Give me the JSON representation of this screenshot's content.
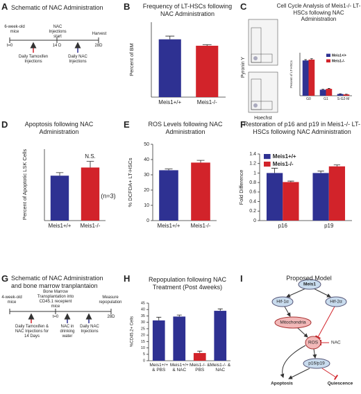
{
  "letters": [
    "A",
    "B",
    "C",
    "D",
    "E",
    "F",
    "G",
    "H",
    "I"
  ],
  "schematic_a": {
    "title": "Schematic of NAC Administration",
    "start": "6-week-old mice",
    "mid": "NAC Injections start",
    "end": "Harvest",
    "t0": "t=0",
    "t1": "14 D",
    "t2": "28D",
    "red_arrow": "Daily Tamoxifen Injections",
    "blue_arrow": "Daily NAC Injections"
  },
  "schematic_g": {
    "title": "Schematic of NAC Administration and bone marrow tranplantaion",
    "start": "4-week-old mice",
    "mid": "Bone Marrow Transplantation into CD45.1 recepient mice",
    "end": "Measure repopulation",
    "red_arrow": "Daily Tamoxifen & NAC Injections for 14 Days",
    "t0": "t=0",
    "water": "NAC in drinking water",
    "blue_arrow": "Daily NAC Injections",
    "t2": "28D"
  },
  "flow": {
    "y_label": "Pyronin Y",
    "x_label": "Hoechst"
  },
  "model": {
    "title": "Proposed Model",
    "meis1": "Meis1",
    "hif1": "Hif-1α",
    "hif2": "Hif-2α",
    "mito": "Mitochondria",
    "ros": "ROS",
    "nac": "NAC",
    "p16": "p16/p19",
    "apoptosis": "Apoptosis",
    "quiescence": "Quiescence"
  },
  "chart_data": [
    {
      "type": "bar",
      "title": "Frequency of LT-HSCs following NAC Administration",
      "y_label": "Percent of BM",
      "categories": [
        "Meis1+/+",
        "Meis1-/-"
      ],
      "values": [
        0.027,
        0.024
      ],
      "errors": [
        0.0015,
        0.0005
      ],
      "colors": [
        "#2e3192",
        "#d2232a"
      ],
      "ylim": [
        0,
        0.035
      ]
    },
    {
      "type": "grouped_bar",
      "title": "Cell Cycle Analysis of Meis1-/- LT-HSCs following NAC Administration",
      "y_label": "Percent of LT-HSCs",
      "categories": [
        "G0",
        "G1",
        "S-G2-M"
      ],
      "series": [
        {
          "name": "Meis1+/+",
          "color": "#2e3192",
          "values": [
            82,
            14,
            4
          ],
          "errors": [
            2,
            1,
            0.5
          ]
        },
        {
          "name": "Meis1-/-",
          "color": "#d2232a",
          "values": [
            84,
            16,
            3
          ],
          "errors": [
            2,
            1,
            0.5
          ]
        }
      ],
      "ylim": [
        0,
        100
      ]
    },
    {
      "type": "bar",
      "title": "Apoptosis following NAC Administration",
      "y_label": "Percent of Apoptotic LSK Cells",
      "categories": [
        "Meis1+/+",
        "Meis1-/-"
      ],
      "values": [
        4.4,
        5.2
      ],
      "errors": [
        0.3,
        0.6
      ],
      "colors": [
        "#2e3192",
        "#d2232a"
      ],
      "ylim": [
        0,
        7
      ],
      "annotations": [
        "N.S.",
        "(n=3)"
      ]
    },
    {
      "type": "bar",
      "title": "ROS Levels following NAC Administration",
      "y_label": "% DCFDA+ LT-HSCs",
      "categories": [
        "Meis1+/+",
        "Meis1-/-"
      ],
      "values": [
        33,
        38
      ],
      "errors": [
        0.8,
        1.5
      ],
      "colors": [
        "#2e3192",
        "#d2232a"
      ],
      "ylim": [
        0,
        50
      ],
      "yticks": [
        0,
        10,
        20,
        30,
        40,
        50
      ]
    },
    {
      "type": "grouped_bar",
      "title": "Restoration of p16 and p19 in Meis1-/- LT-HSCs following NAC Administration",
      "y_label": "Fold Difference",
      "categories": [
        "p16",
        "p19"
      ],
      "series": [
        {
          "name": "Meis1+/+",
          "color": "#2e3192",
          "values": [
            1.0,
            1.0
          ],
          "errors": [
            0.1,
            0.04
          ]
        },
        {
          "name": "Meis1-/-",
          "color": "#d2232a",
          "values": [
            0.81,
            1.14
          ],
          "errors": [
            0.02,
            0.03
          ]
        }
      ],
      "ylim": [
        0,
        1.4
      ],
      "yticks": [
        0,
        0.2,
        0.4,
        0.6,
        0.8,
        1,
        1.2,
        1.4
      ]
    },
    {
      "type": "bar",
      "title": "Repopulation following NAC Treatment (Post 4weeks)",
      "y_label": "%CD45.2+ Cells",
      "categories": [
        "Meis1+/+ & PBS",
        "Meis1+/+ & NAC",
        "Meis1-/- & PBS",
        "Meis1-/- & NAC"
      ],
      "values": [
        31.5,
        34.5,
        6,
        39
      ],
      "errors": [
        2.5,
        1.2,
        1.5,
        1.5
      ],
      "colors": [
        "#2e3192",
        "#2e3192",
        "#d2232a",
        "#2e3192"
      ],
      "ylim": [
        0,
        45
      ],
      "yticks": [
        0,
        5,
        10,
        15,
        20,
        25,
        30,
        35,
        40,
        45
      ]
    }
  ]
}
